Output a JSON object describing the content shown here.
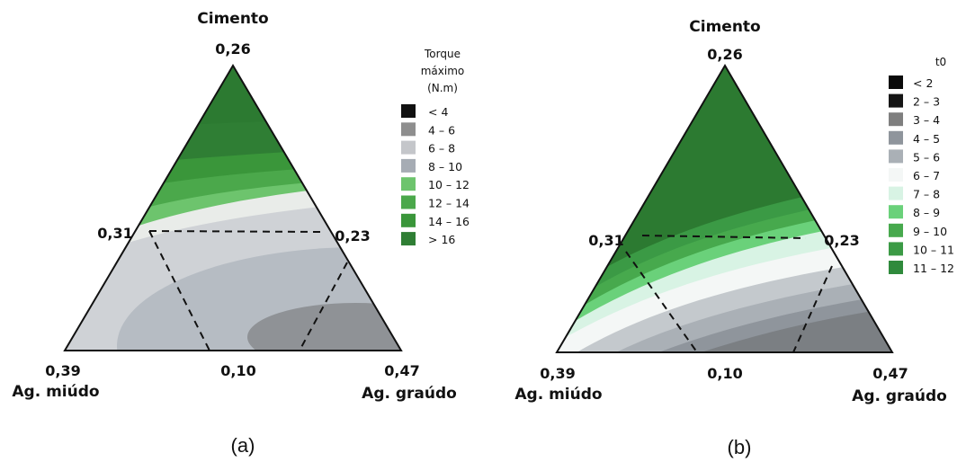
{
  "chart_data": [
    {
      "type": "ternary-contour",
      "caption": "(a)",
      "vertices": {
        "top": {
          "label": "Cimento",
          "value": "0,26"
        },
        "left": {
          "label": "Ag. miúdo",
          "value": "0,39"
        },
        "right": {
          "label": "Ag. graúdo",
          "value": "0,47"
        }
      },
      "edge_ticks": {
        "left": "0,31",
        "right": "0,23",
        "bottom": "0,10"
      },
      "legend": {
        "title": [
          "Torque",
          "máximo",
          "(N.m)"
        ],
        "items": [
          {
            "label": "<  4",
            "color": "#111111"
          },
          {
            "label": "4 –  6",
            "color": "#8e8e8e"
          },
          {
            "label": "6 –  8",
            "color": "#c4c6ca"
          },
          {
            "label": "8 – 10",
            "color": "#a6acb4"
          },
          {
            "label": "10 – 12",
            "color": "#6dc46d"
          },
          {
            "label": "12 – 14",
            "color": "#4ba84b"
          },
          {
            "label": "14 – 16",
            "color": "#3a963a"
          },
          {
            "label": ">  16",
            "color": "#2f7e34"
          }
        ]
      }
    },
    {
      "type": "ternary-contour",
      "caption": "(b)",
      "vertices": {
        "top": {
          "label": "Cimento",
          "value": "0,26"
        },
        "left": {
          "label": "Ag. miúdo",
          "value": "0,39"
        },
        "right": {
          "label": "Ag. graúdo",
          "value": "0,47"
        }
      },
      "edge_ticks": {
        "left": "0,31",
        "right": "0,23",
        "bottom": "0,10"
      },
      "legend": {
        "title": [
          "t0"
        ],
        "items": [
          {
            "label": "<  2",
            "color": "#0a0a0a"
          },
          {
            "label": "2 –  3",
            "color": "#151515"
          },
          {
            "label": "3 –  4",
            "color": "#7f7f7f"
          },
          {
            "label": "4 –  5",
            "color": "#8f959c"
          },
          {
            "label": "5 –  6",
            "color": "#aab0b6"
          },
          {
            "label": "6 –  7",
            "color": "#f4f7f6"
          },
          {
            "label": "7 –  8",
            "color": "#d8f3e4"
          },
          {
            "label": "8 –  9",
            "color": "#6ad17a"
          },
          {
            "label": "9 – 10",
            "color": "#47a94d"
          },
          {
            "label": "10 – 11",
            "color": "#3b9a45"
          },
          {
            "label": "11 – 12",
            "color": "#2f8a3c"
          }
        ]
      }
    }
  ]
}
